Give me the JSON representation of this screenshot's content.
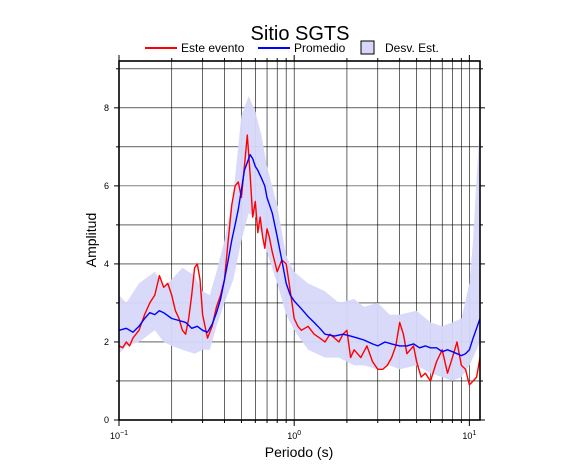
{
  "chart_data": {
    "type": "line",
    "title": "Sitio SGTS",
    "xlabel": "Periodo (s)",
    "ylabel": "Amplitud",
    "x_scale": "log",
    "xlim": [
      0.1,
      11.5
    ],
    "ylim": [
      0,
      9.2
    ],
    "y_ticks": [
      0,
      2,
      4,
      6,
      8
    ],
    "y_tick_labels": [
      "0",
      "2",
      "4",
      "6",
      "8"
    ],
    "x_tick_labels": [
      {
        "value": 0.1,
        "base": "10",
        "exp": "−1"
      },
      {
        "value": 1,
        "base": "10",
        "exp": "0"
      },
      {
        "value": 10,
        "base": "10",
        "exp": "1"
      }
    ],
    "grid": true,
    "legend_position": "top",
    "legend": [
      {
        "label": "Este evento",
        "kind": "line",
        "color": "#ff0000"
      },
      {
        "label": "Promedio",
        "kind": "line",
        "color": "#0000ff"
      },
      {
        "label": "Desv. Est.",
        "kind": "band",
        "color": "#d7d7fa"
      }
    ],
    "colors": {
      "este_evento": "#ff0000",
      "promedio": "#0000ff",
      "band": "#d7d7fa"
    },
    "band": {
      "name": "Desv. Est.",
      "x": [
        0.1,
        0.11,
        0.13,
        0.16,
        0.18,
        0.2,
        0.23,
        0.27,
        0.3,
        0.33,
        0.36,
        0.4,
        0.45,
        0.5,
        0.55,
        0.6,
        0.65,
        0.7,
        0.8,
        0.9,
        1.0,
        1.2,
        1.5,
        1.8,
        2.2,
        2.5,
        3.0,
        3.5,
        4.0,
        5.0,
        6.0,
        7.0,
        8.0,
        9.0,
        10.0,
        10.5,
        11.0,
        11.5
      ],
      "upper": [
        3.2,
        3.0,
        3.5,
        3.8,
        3.4,
        3.6,
        3.9,
        3.7,
        3.3,
        3.2,
        3.8,
        4.6,
        5.8,
        7.8,
        8.3,
        7.9,
        7.3,
        6.5,
        5.5,
        4.2,
        3.8,
        3.5,
        3.3,
        3.0,
        3.1,
        2.9,
        3.0,
        2.7,
        2.7,
        2.8,
        2.5,
        2.4,
        2.5,
        2.6,
        3.5,
        4.6,
        6.2,
        7.6
      ],
      "lower": [
        1.7,
        1.9,
        2.0,
        2.3,
        2.0,
        1.9,
        1.8,
        1.7,
        1.8,
        1.8,
        2.4,
        3.0,
        3.6,
        4.6,
        5.3,
        5.2,
        4.8,
        4.3,
        3.5,
        2.7,
        2.3,
        1.8,
        1.6,
        1.6,
        1.4,
        1.4,
        1.3,
        1.4,
        1.3,
        1.4,
        1.2,
        1.1,
        1.0,
        1.1,
        1.4,
        1.6,
        1.8,
        2.0
      ]
    },
    "series": [
      {
        "name": "Este evento",
        "color": "#ff0000",
        "x": [
          0.1,
          0.105,
          0.11,
          0.115,
          0.12,
          0.13,
          0.14,
          0.15,
          0.16,
          0.17,
          0.18,
          0.19,
          0.2,
          0.21,
          0.22,
          0.23,
          0.24,
          0.25,
          0.26,
          0.27,
          0.28,
          0.29,
          0.3,
          0.32,
          0.34,
          0.36,
          0.38,
          0.4,
          0.42,
          0.44,
          0.46,
          0.48,
          0.5,
          0.52,
          0.54,
          0.56,
          0.58,
          0.6,
          0.62,
          0.64,
          0.66,
          0.68,
          0.7,
          0.72,
          0.75,
          0.8,
          0.85,
          0.9,
          0.95,
          1.0,
          1.05,
          1.1,
          1.2,
          1.3,
          1.4,
          1.5,
          1.6,
          1.7,
          1.8,
          1.9,
          2.0,
          2.1,
          2.2,
          2.4,
          2.6,
          2.8,
          3.0,
          3.2,
          3.4,
          3.6,
          3.8,
          4.0,
          4.2,
          4.4,
          4.6,
          4.8,
          5.0,
          5.3,
          5.6,
          6.0,
          6.5,
          7.0,
          7.5,
          8.0,
          8.5,
          9.0,
          9.5,
          10.0,
          10.5,
          11.0,
          11.5
        ],
        "y": [
          1.9,
          1.85,
          2.0,
          1.9,
          2.1,
          2.3,
          2.7,
          3.0,
          3.2,
          3.7,
          3.4,
          3.5,
          3.2,
          2.8,
          2.6,
          2.3,
          2.2,
          2.6,
          3.2,
          3.9,
          4.0,
          3.6,
          2.7,
          2.1,
          2.4,
          2.9,
          3.2,
          3.6,
          4.6,
          5.5,
          6.0,
          6.1,
          5.7,
          6.5,
          7.3,
          6.3,
          5.2,
          5.6,
          4.8,
          5.2,
          4.7,
          4.4,
          4.9,
          4.7,
          4.3,
          3.8,
          4.1,
          4.0,
          3.3,
          2.6,
          2.4,
          2.3,
          2.4,
          2.2,
          2.1,
          2.0,
          2.2,
          2.1,
          2.0,
          2.2,
          2.3,
          1.6,
          1.8,
          1.6,
          1.9,
          1.5,
          1.3,
          1.3,
          1.4,
          1.6,
          1.9,
          2.5,
          2.2,
          1.7,
          1.8,
          1.9,
          1.5,
          1.1,
          1.2,
          1.0,
          1.5,
          1.8,
          1.2,
          1.6,
          2.0,
          1.4,
          1.3,
          0.9,
          1.0,
          1.1,
          1.6
        ]
      },
      {
        "name": "Promedio",
        "color": "#0000ff",
        "x": [
          0.1,
          0.11,
          0.12,
          0.13,
          0.14,
          0.15,
          0.16,
          0.17,
          0.18,
          0.2,
          0.22,
          0.24,
          0.26,
          0.28,
          0.3,
          0.32,
          0.34,
          0.36,
          0.38,
          0.4,
          0.42,
          0.44,
          0.46,
          0.48,
          0.5,
          0.52,
          0.54,
          0.56,
          0.58,
          0.6,
          0.62,
          0.65,
          0.68,
          0.7,
          0.75,
          0.8,
          0.85,
          0.9,
          0.95,
          1.0,
          1.1,
          1.2,
          1.3,
          1.4,
          1.5,
          1.7,
          1.9,
          2.1,
          2.3,
          2.5,
          2.8,
          3.0,
          3.3,
          3.6,
          4.0,
          4.4,
          4.8,
          5.2,
          5.6,
          6.0,
          6.5,
          7.0,
          7.5,
          8.0,
          8.5,
          9.0,
          9.5,
          10.0,
          10.5,
          11.0,
          11.5
        ],
        "y": [
          2.3,
          2.35,
          2.25,
          2.4,
          2.6,
          2.75,
          2.7,
          2.8,
          2.75,
          2.6,
          2.55,
          2.5,
          2.35,
          2.4,
          2.3,
          2.25,
          2.45,
          2.75,
          3.1,
          3.6,
          4.1,
          4.6,
          5.0,
          5.4,
          5.9,
          6.4,
          6.6,
          6.8,
          6.7,
          6.5,
          6.4,
          6.2,
          6.0,
          5.7,
          5.3,
          4.7,
          4.1,
          3.5,
          3.2,
          3.05,
          2.85,
          2.65,
          2.5,
          2.35,
          2.2,
          2.15,
          2.2,
          2.15,
          2.1,
          2.05,
          1.95,
          1.9,
          2.0,
          1.95,
          1.9,
          1.9,
          1.95,
          1.85,
          1.9,
          1.85,
          1.85,
          1.75,
          1.8,
          1.75,
          1.7,
          1.65,
          1.7,
          1.8,
          2.1,
          2.35,
          2.6
        ]
      }
    ]
  }
}
